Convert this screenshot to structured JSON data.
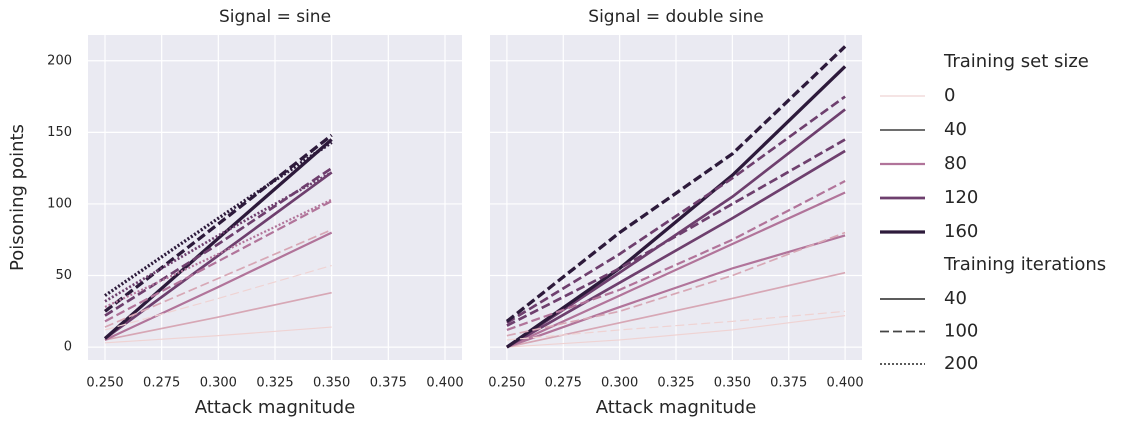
{
  "chart_data": [
    {
      "type": "line",
      "title": "Signal = sine",
      "xlabel": "Attack magnitude",
      "ylabel": "Poisoning points",
      "x": [
        0.25,
        0.3,
        0.35
      ],
      "xlim": [
        0.2425,
        0.4075
      ],
      "xticks": [
        {
          "value": 0.25,
          "label": "0.250"
        },
        {
          "value": 0.275,
          "label": "0.275"
        },
        {
          "value": 0.3,
          "label": "0.300"
        },
        {
          "value": 0.325,
          "label": "0.325"
        },
        {
          "value": 0.35,
          "label": "0.350"
        },
        {
          "value": 0.375,
          "label": "0.375"
        },
        {
          "value": 0.4,
          "label": "0.400"
        }
      ],
      "ylim": [
        -9,
        218
      ],
      "yticks": [
        0,
        50,
        100,
        150,
        200
      ],
      "grid": true,
      "series": [
        {
          "color": "#efd3d3",
          "dash": "solid",
          "width": 1.2,
          "values": [
            3,
            8,
            14
          ]
        },
        {
          "color": "#d7a7b5",
          "dash": "solid",
          "width": 1.7,
          "values": [
            5,
            21,
            38
          ]
        },
        {
          "color": "#b1749a",
          "dash": "solid",
          "width": 2.2,
          "values": [
            5,
            42,
            80
          ]
        },
        {
          "color": "#6e3f6e",
          "dash": "solid",
          "width": 2.7,
          "values": [
            6,
            64,
            122
          ]
        },
        {
          "color": "#2d1a3b",
          "dash": "solid",
          "width": 3.3,
          "values": [
            6,
            76,
            145
          ]
        },
        {
          "color": "#efd3d3",
          "dash": "dashed",
          "width": 1.2,
          "values": [
            12,
            34,
            57
          ]
        },
        {
          "color": "#d7a7b5",
          "dash": "dashed",
          "width": 1.7,
          "values": [
            14,
            48,
            82
          ]
        },
        {
          "color": "#b1749a",
          "dash": "dashed",
          "width": 2.2,
          "values": [
            18,
            60,
            102
          ]
        },
        {
          "color": "#6e3f6e",
          "dash": "dashed",
          "width": 2.7,
          "values": [
            22,
            72,
            125
          ]
        },
        {
          "color": "#2d1a3b",
          "dash": "dashed",
          "width": 3.3,
          "values": [
            25,
            86,
            148
          ]
        },
        {
          "color": "#b1749a",
          "dash": "dotted",
          "width": 2.2,
          "values": [
            28,
            65,
            103
          ]
        },
        {
          "color": "#6e3f6e",
          "dash": "dotted",
          "width": 2.7,
          "values": [
            32,
            78,
            122
          ]
        },
        {
          "color": "#2d1a3b",
          "dash": "dotted",
          "width": 3.3,
          "values": [
            36,
            90,
            143
          ]
        }
      ]
    },
    {
      "type": "line",
      "title": "Signal = double sine",
      "xlabel": "Attack magnitude",
      "x": [
        0.25,
        0.3,
        0.35,
        0.4
      ],
      "xlim": [
        0.2425,
        0.4075
      ],
      "xticks": [
        {
          "value": 0.25,
          "label": "0.250"
        },
        {
          "value": 0.275,
          "label": "0.275"
        },
        {
          "value": 0.3,
          "label": "0.300"
        },
        {
          "value": 0.325,
          "label": "0.325"
        },
        {
          "value": 0.35,
          "label": "0.350"
        },
        {
          "value": 0.375,
          "label": "0.375"
        },
        {
          "value": 0.4,
          "label": "0.400"
        }
      ],
      "ylim": [
        -9,
        218
      ],
      "yticks": [
        0,
        50,
        100,
        150,
        200
      ],
      "grid": true,
      "series": [
        {
          "color": "#efd3d3",
          "dash": "solid",
          "width": 1.2,
          "values": [
            0,
            5,
            12,
            22
          ]
        },
        {
          "color": "#d7a7b5",
          "dash": "solid",
          "width": 1.7,
          "values": [
            0,
            17,
            34,
            52
          ]
        },
        {
          "color": "#b1749a",
          "dash": "solid",
          "width": 2.2,
          "values": [
            0,
            28,
            55,
            78
          ]
        },
        {
          "color": "#b1749a",
          "dash": "solid",
          "width": 2.2,
          "values": [
            0,
            36,
            72,
            108
          ]
        },
        {
          "color": "#6e3f6e",
          "dash": "solid",
          "width": 2.7,
          "values": [
            0,
            45,
            90,
            137
          ]
        },
        {
          "color": "#6e3f6e",
          "dash": "solid",
          "width": 2.7,
          "values": [
            0,
            52,
            105,
            166
          ]
        },
        {
          "color": "#2d1a3b",
          "dash": "solid",
          "width": 3.3,
          "values": [
            0,
            55,
            120,
            196
          ]
        },
        {
          "color": "#efd3d3",
          "dash": "dashed",
          "width": 1.2,
          "values": [
            5,
            12,
            18,
            25
          ]
        },
        {
          "color": "#d7a7b5",
          "dash": "dashed",
          "width": 1.7,
          "values": [
            8,
            25,
            50,
            80
          ]
        },
        {
          "color": "#b1749a",
          "dash": "dashed",
          "width": 2.2,
          "values": [
            12,
            40,
            75,
            116
          ]
        },
        {
          "color": "#6e3f6e",
          "dash": "dashed",
          "width": 2.7,
          "values": [
            15,
            55,
            100,
            145
          ]
        },
        {
          "color": "#6e3f6e",
          "dash": "dashed",
          "width": 2.7,
          "values": [
            17,
            65,
            118,
            175
          ]
        },
        {
          "color": "#2d1a3b",
          "dash": "dashed",
          "width": 3.3,
          "values": [
            18,
            80,
            135,
            210
          ]
        }
      ]
    }
  ],
  "legend": {
    "size_title": "Training set size",
    "sizes": [
      {
        "label": 0,
        "color": "#efd3d3",
        "width": 1.2
      },
      {
        "label": 40,
        "color": "#5a5a5a",
        "width": 1.7
      },
      {
        "label": 80,
        "color": "#b1749a",
        "width": 2.2
      },
      {
        "label": 120,
        "color": "#6e3f6e",
        "width": 2.7
      },
      {
        "label": 160,
        "color": "#2d1a3b",
        "width": 3.3
      }
    ],
    "iterations_title": "Training iterations",
    "iterations": [
      {
        "label": 40,
        "dash": "solid"
      },
      {
        "label": 100,
        "dash": "dashed"
      },
      {
        "label": 200,
        "dash": "dotted"
      }
    ]
  }
}
